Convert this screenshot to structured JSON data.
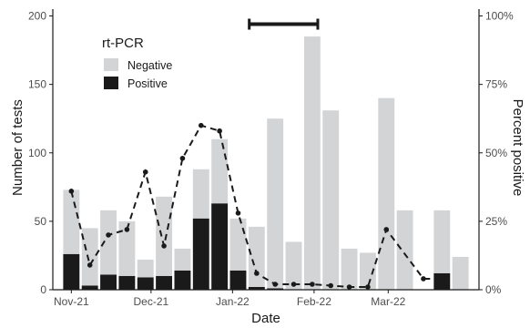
{
  "chart_data": {
    "type": "bar",
    "stacked": true,
    "xlabel": "Date",
    "ylabel": "Number of tests",
    "y2label": "Percent positive",
    "ylim": [
      0,
      205
    ],
    "y2lim": [
      0,
      1.025
    ],
    "y_ticks": [
      0,
      50,
      100,
      150,
      200
    ],
    "y2_ticks": [
      {
        "value": 0,
        "label": "0%"
      },
      {
        "value": 0.25,
        "label": "25%"
      },
      {
        "value": 0.5,
        "label": "50%"
      },
      {
        "value": 0.75,
        "label": "75%"
      },
      {
        "value": 1.0,
        "label": "100%"
      }
    ],
    "x_ticks": [
      {
        "value": 0,
        "label": "Nov-21"
      },
      {
        "value": 4.3,
        "label": "Dec-21"
      },
      {
        "value": 8.7,
        "label": "Jan-22"
      },
      {
        "value": 13.1,
        "label": "Feb-22"
      },
      {
        "value": 17.1,
        "label": "Mar-22"
      }
    ],
    "x_range": [
      -1,
      22
    ],
    "categories": [
      0,
      1,
      2,
      3,
      4,
      5,
      6,
      7,
      8,
      9,
      10,
      11,
      12,
      13,
      14,
      15,
      16,
      17,
      18,
      19,
      20,
      21
    ],
    "legend": {
      "title": "rt-PCR",
      "position": "top-left"
    },
    "series": [
      {
        "name": "Positive",
        "color": "#1a1a1a",
        "values": [
          26,
          3,
          11,
          10,
          9,
          10,
          14,
          52,
          63,
          14,
          2,
          1,
          0,
          0,
          0,
          0,
          0,
          0,
          0,
          0,
          12,
          0
        ]
      },
      {
        "name": "Negative",
        "color": "#d3d4d6",
        "values": [
          47,
          42,
          47,
          40,
          13,
          58,
          16,
          36,
          47,
          38,
          44,
          124,
          35,
          185,
          131,
          30,
          27,
          140,
          58,
          0,
          46,
          24
        ]
      }
    ],
    "line": {
      "name": "Percent positive",
      "style": "dashed",
      "color": "#1a1a1a",
      "x": [
        0,
        1,
        2,
        3,
        4,
        5,
        6,
        7,
        8,
        9,
        10,
        11,
        12,
        13,
        14,
        15,
        16,
        17,
        19,
        20
      ],
      "values": [
        0.36,
        0.09,
        0.2,
        0.22,
        0.43,
        0.16,
        0.48,
        0.6,
        0.58,
        0.28,
        0.06,
        0.02,
        0.02,
        0.02,
        0.015,
        0.01,
        0.01,
        0.22,
        0.04,
        0.04
      ]
    },
    "annotation": {
      "type": "interval",
      "x_start": 9.6,
      "x_end": 13.3,
      "y": 194
    },
    "grid": false,
    "colors": {
      "positive": "#1a1a1a",
      "negative": "#d3d4d6",
      "axis": "#1a1a1a"
    }
  }
}
